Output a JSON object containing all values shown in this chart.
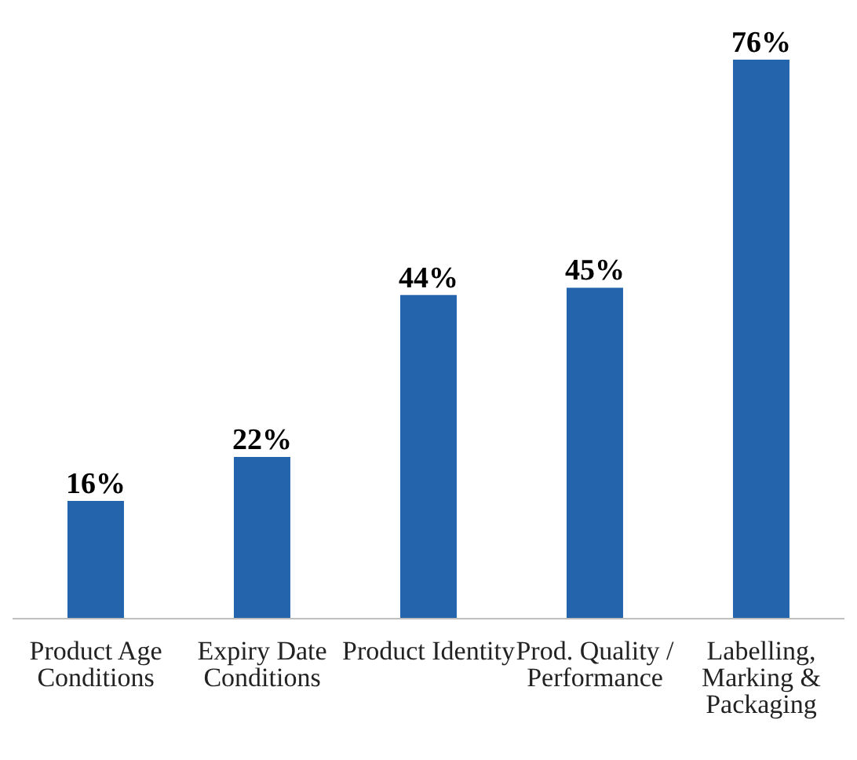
{
  "chart_data": {
    "type": "bar",
    "categories": [
      "Product Age Conditions",
      "Expiry Date Conditions",
      "Product Identity",
      "Prod. Quality / Performance",
      "Labelling, Marking & Packaging"
    ],
    "values": [
      16,
      22,
      44,
      45,
      76
    ],
    "value_labels": [
      "16%",
      "22%",
      "44%",
      "45%",
      "76%"
    ],
    "color": "#2464ac"
  }
}
